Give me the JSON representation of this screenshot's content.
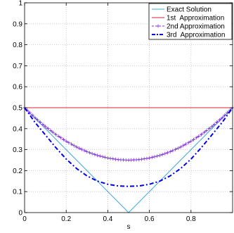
{
  "chart_data": {
    "type": "line",
    "title": "",
    "xlabel": "s",
    "ylabel": "",
    "xlim": [
      0,
      1
    ],
    "ylim": [
      0,
      1
    ],
    "grid": true,
    "legend_position": "top-right",
    "x_ticks": [
      {
        "value": 0,
        "label": "0"
      },
      {
        "value": 0.2,
        "label": "0.2"
      },
      {
        "value": 0.4,
        "label": "0.4"
      },
      {
        "value": 0.6,
        "label": "0.6"
      },
      {
        "value": 0.8,
        "label": "0.8"
      }
    ],
    "y_ticks": [
      {
        "value": 0,
        "label": "0"
      },
      {
        "value": 0.1,
        "label": "0.1"
      },
      {
        "value": 0.2,
        "label": "0.2"
      },
      {
        "value": 0.3,
        "label": "0.3"
      },
      {
        "value": 0.4,
        "label": "0.4"
      },
      {
        "value": 0.5,
        "label": "0.5"
      },
      {
        "value": 0.6,
        "label": "0.6"
      },
      {
        "value": 0.7,
        "label": "0.7"
      },
      {
        "value": 0.8,
        "label": "0.8"
      },
      {
        "value": 0.9,
        "label": "0.9"
      },
      {
        "value": 1,
        "label": "1"
      }
    ],
    "series": [
      {
        "name": "Exact Solution",
        "color": "#3fa9d8",
        "style": "solid",
        "marker": "none",
        "x": [
          0,
          0.5,
          1
        ],
        "y": [
          0.5,
          0,
          0.5
        ]
      },
      {
        "name": "1st  Approximation",
        "color": "#d62728",
        "style": "solid",
        "marker": "none",
        "x": [
          0,
          1
        ],
        "y": [
          0.5,
          0.5
        ]
      },
      {
        "name": "2nd Approximation",
        "color": "#7b2fd6",
        "style": "dashed",
        "marker": "plus",
        "x": [
          0,
          0.05,
          0.1,
          0.15,
          0.2,
          0.25,
          0.3,
          0.35,
          0.4,
          0.45,
          0.5,
          0.55,
          0.6,
          0.65,
          0.7,
          0.75,
          0.8,
          0.85,
          0.9,
          0.95,
          1
        ],
        "y": [
          0.5,
          0.4525,
          0.41,
          0.3725,
          0.34,
          0.3125,
          0.29,
          0.2725,
          0.26,
          0.2525,
          0.25,
          0.2525,
          0.26,
          0.2725,
          0.29,
          0.3125,
          0.34,
          0.3725,
          0.41,
          0.4525,
          0.5
        ]
      },
      {
        "name": "3rd  Approximation",
        "color": "#0000ee",
        "style": "dashdot",
        "marker": "none",
        "x": [
          0,
          0.05,
          0.1,
          0.15,
          0.2,
          0.25,
          0.3,
          0.35,
          0.4,
          0.45,
          0.5,
          0.55,
          0.6,
          0.65,
          0.7,
          0.75,
          0.8,
          0.85,
          0.9,
          0.95,
          1
        ],
        "y": [
          0.5,
          0.43,
          0.37,
          0.31,
          0.255,
          0.21,
          0.175,
          0.15,
          0.135,
          0.127,
          0.125,
          0.127,
          0.135,
          0.15,
          0.175,
          0.21,
          0.255,
          0.31,
          0.37,
          0.43,
          0.5
        ]
      }
    ]
  }
}
